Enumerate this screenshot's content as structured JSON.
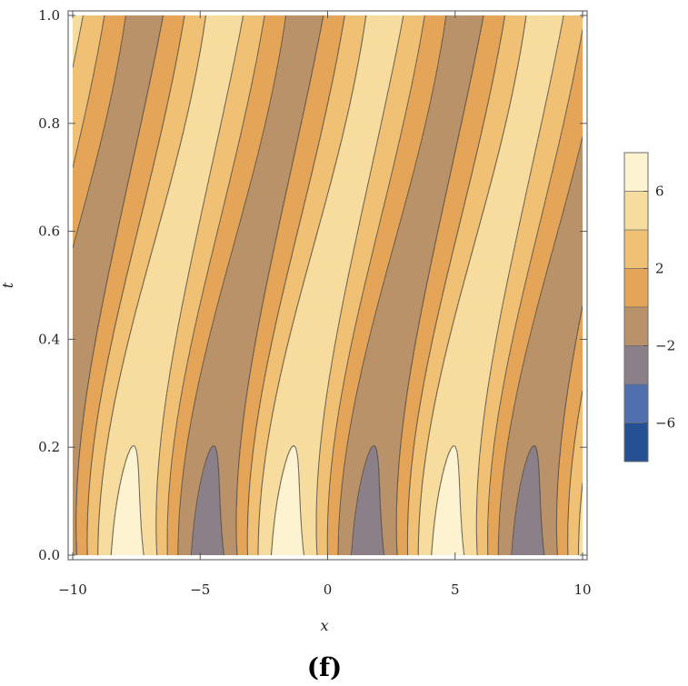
{
  "chart_data": {
    "type": "heatmap",
    "title": "",
    "xlabel": "x",
    "ylabel": "t",
    "xlim": [
      -10,
      10
    ],
    "ylim": [
      0,
      1
    ],
    "x_ticks": [
      -10,
      -5,
      0,
      5,
      10
    ],
    "y_ticks": [
      0.0,
      0.2,
      0.4,
      0.6,
      0.8,
      1.0
    ],
    "x_tick_labels": [
      "−10",
      "−5",
      "0",
      "5",
      "10"
    ],
    "y_tick_labels": [
      "0.0",
      "0.2",
      "0.4",
      "0.6",
      "0.8",
      "1.0"
    ],
    "contour_levels": [
      -8,
      -6,
      -4,
      -2,
      0,
      2,
      4,
      6,
      8
    ],
    "legend_ticks": [
      6,
      2,
      -2,
      -6
    ],
    "legend_tick_labels": [
      "6",
      "2",
      "−2",
      "−6"
    ],
    "legend_placement": "right",
    "grid": false,
    "colors": [
      "#255192",
      "#4f6fae",
      "#8b8089",
      "#b9926a",
      "#e4a559",
      "#f0c074",
      "#f7dc9f",
      "#fdf3d0"
    ],
    "panel_label": "(f)",
    "period": 6.283,
    "band_start_x": -10.6
  }
}
